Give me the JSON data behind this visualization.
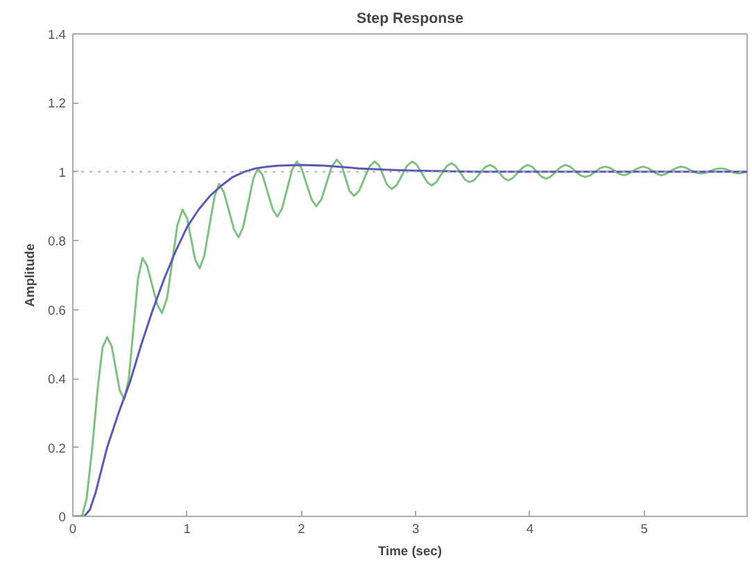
{
  "chart_data": {
    "type": "line",
    "title": "Step Response",
    "xlabel": "Time (sec)",
    "ylabel": "Amplitude",
    "xlim": [
      0,
      5.9
    ],
    "ylim": [
      0,
      1.4
    ],
    "xticks": [
      0,
      1,
      2,
      3,
      4,
      5
    ],
    "yticks": [
      0,
      0.2,
      0.4,
      0.6,
      0.8,
      1,
      1.2,
      1.4
    ],
    "grid": false,
    "line_style": "solid",
    "marker": "none",
    "ref_lines": [
      {
        "axis": "y",
        "value": 1,
        "color": "#b0b0b0",
        "line_style": "dotted"
      }
    ],
    "series": [
      {
        "color": "#80c080",
        "x": [
          0,
          0.08,
          0.12,
          0.17,
          0.22,
          0.26,
          0.3,
          0.34,
          0.375,
          0.41,
          0.45,
          0.49,
          0.53,
          0.57,
          0.61,
          0.65,
          0.695,
          0.74,
          0.78,
          0.825,
          0.87,
          0.915,
          0.96,
          1.0,
          1.035,
          1.07,
          1.11,
          1.15,
          1.195,
          1.24,
          1.28,
          1.32,
          1.365,
          1.41,
          1.45,
          1.49,
          1.535,
          1.58,
          1.62,
          1.66,
          1.705,
          1.75,
          1.79,
          1.83,
          1.875,
          1.92,
          1.96,
          2.0,
          2.045,
          2.09,
          2.13,
          2.175,
          2.22,
          2.265,
          2.31,
          2.35,
          2.385,
          2.42,
          2.46,
          2.505,
          2.55,
          2.595,
          2.64,
          2.68,
          2.715,
          2.75,
          2.79,
          2.835,
          2.88,
          2.925,
          2.97,
          3.01,
          3.055,
          3.1,
          3.14,
          3.18,
          3.225,
          3.27,
          3.31,
          3.35,
          3.39,
          3.43,
          3.47,
          3.515,
          3.56,
          3.605,
          3.65,
          3.69,
          3.73,
          3.77,
          3.81,
          3.85,
          3.895,
          3.94,
          3.98,
          4.02,
          4.06,
          4.1,
          4.14,
          4.18,
          4.225,
          4.27,
          4.31,
          4.35,
          4.395,
          4.44,
          4.48,
          4.525,
          4.57,
          4.615,
          4.66,
          4.7,
          4.74,
          4.78,
          4.82,
          4.86,
          4.905,
          4.95,
          4.99,
          5.03,
          5.07,
          5.11,
          5.15,
          5.19,
          5.235,
          5.28,
          5.32,
          5.36,
          5.405,
          5.45,
          5.49,
          5.535,
          5.58,
          5.625,
          5.67,
          5.71,
          5.75,
          5.79,
          5.83,
          5.9
        ],
        "values": [
          0,
          0,
          0.05,
          0.2,
          0.38,
          0.49,
          0.52,
          0.494,
          0.43,
          0.366,
          0.34,
          0.4,
          0.545,
          0.69,
          0.75,
          0.727,
          0.67,
          0.613,
          0.59,
          0.634,
          0.74,
          0.846,
          0.89,
          0.865,
          0.805,
          0.745,
          0.72,
          0.756,
          0.843,
          0.929,
          0.965,
          0.942,
          0.888,
          0.833,
          0.81,
          0.839,
          0.91,
          0.981,
          1.01,
          0.99,
          0.94,
          0.89,
          0.87,
          0.893,
          0.95,
          1.007,
          1.03,
          1.011,
          0.965,
          0.919,
          0.9,
          0.92,
          0.968,
          1.015,
          1.035,
          1.02,
          0.983,
          0.945,
          0.93,
          0.945,
          0.98,
          1.015,
          1.03,
          1.018,
          0.99,
          0.962,
          0.95,
          0.962,
          0.99,
          1.018,
          1.03,
          1.02,
          0.995,
          0.97,
          0.96,
          0.97,
          0.993,
          1.016,
          1.025,
          1.017,
          0.998,
          0.978,
          0.97,
          0.977,
          0.995,
          1.013,
          1.02,
          1.013,
          0.998,
          0.982,
          0.975,
          0.982,
          0.998,
          1.013,
          1.02,
          1.014,
          1.0,
          0.986,
          0.98,
          0.986,
          1.0,
          1.014,
          1.02,
          1.015,
          1.003,
          0.99,
          0.985,
          0.989,
          1.0,
          1.011,
          1.015,
          1.011,
          1.003,
          0.994,
          0.99,
          0.994,
          1.003,
          1.011,
          1.015,
          1.011,
          1.003,
          0.994,
          0.99,
          0.994,
          1.003,
          1.011,
          1.015,
          1.012,
          1.005,
          0.998,
          0.995,
          0.997,
          1.003,
          1.008,
          1.01,
          1.008,
          1.003,
          0.997,
          0.995,
          1.0
        ]
      },
      {
        "color": "#5a5ab4",
        "x": [
          0,
          0.1,
          0.15,
          0.2,
          0.3,
          0.4,
          0.5,
          0.6,
          0.7,
          0.8,
          0.9,
          1.0,
          1.1,
          1.2,
          1.3,
          1.4,
          1.5,
          1.6,
          1.7,
          1.8,
          2.0,
          2.2,
          2.5,
          2.8,
          3.0,
          3.5,
          4.0,
          5.0,
          5.9
        ],
        "values": [
          0,
          0,
          0.02,
          0.07,
          0.2,
          0.3,
          0.39,
          0.5,
          0.6,
          0.69,
          0.77,
          0.84,
          0.89,
          0.93,
          0.96,
          0.985,
          1.0,
          1.01,
          1.015,
          1.018,
          1.02,
          1.018,
          1.01,
          1.005,
          1.003,
          1.0,
          1.0,
          1.0,
          1.0
        ]
      }
    ]
  }
}
